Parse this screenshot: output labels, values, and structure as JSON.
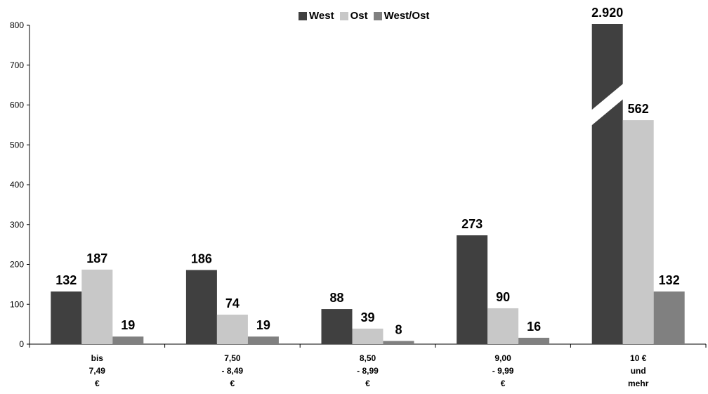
{
  "chart_data": {
    "type": "bar",
    "categories": [
      [
        "bis",
        "7,49",
        "€"
      ],
      [
        "7,50",
        "- 8,49",
        "€"
      ],
      [
        "8,50",
        "- 8,99",
        "€"
      ],
      [
        "9,00",
        "- 9,99",
        "€"
      ],
      [
        "10 €",
        "und",
        "mehr"
      ]
    ],
    "series": [
      {
        "name": "West",
        "color": "#404040",
        "values": [
          132,
          186,
          88,
          273,
          2920
        ],
        "labels": [
          "132",
          "186",
          "88",
          "273",
          "2.920"
        ]
      },
      {
        "name": "Ost",
        "color": "#c8c8c8",
        "values": [
          187,
          74,
          39,
          90,
          562
        ],
        "labels": [
          "187",
          "74",
          "39",
          "90",
          "562"
        ]
      },
      {
        "name": "West/Ost",
        "color": "#808080",
        "values": [
          19,
          19,
          8,
          16,
          132
        ],
        "labels": [
          "19",
          "19",
          "8",
          "16",
          "132"
        ]
      }
    ],
    "ylim": [
      0,
      800
    ],
    "yticks": [
      "0",
      "100",
      "200",
      "300",
      "400",
      "500",
      "600",
      "700",
      "800"
    ],
    "axis_break": true,
    "legend_position": "top",
    "grid": false
  }
}
